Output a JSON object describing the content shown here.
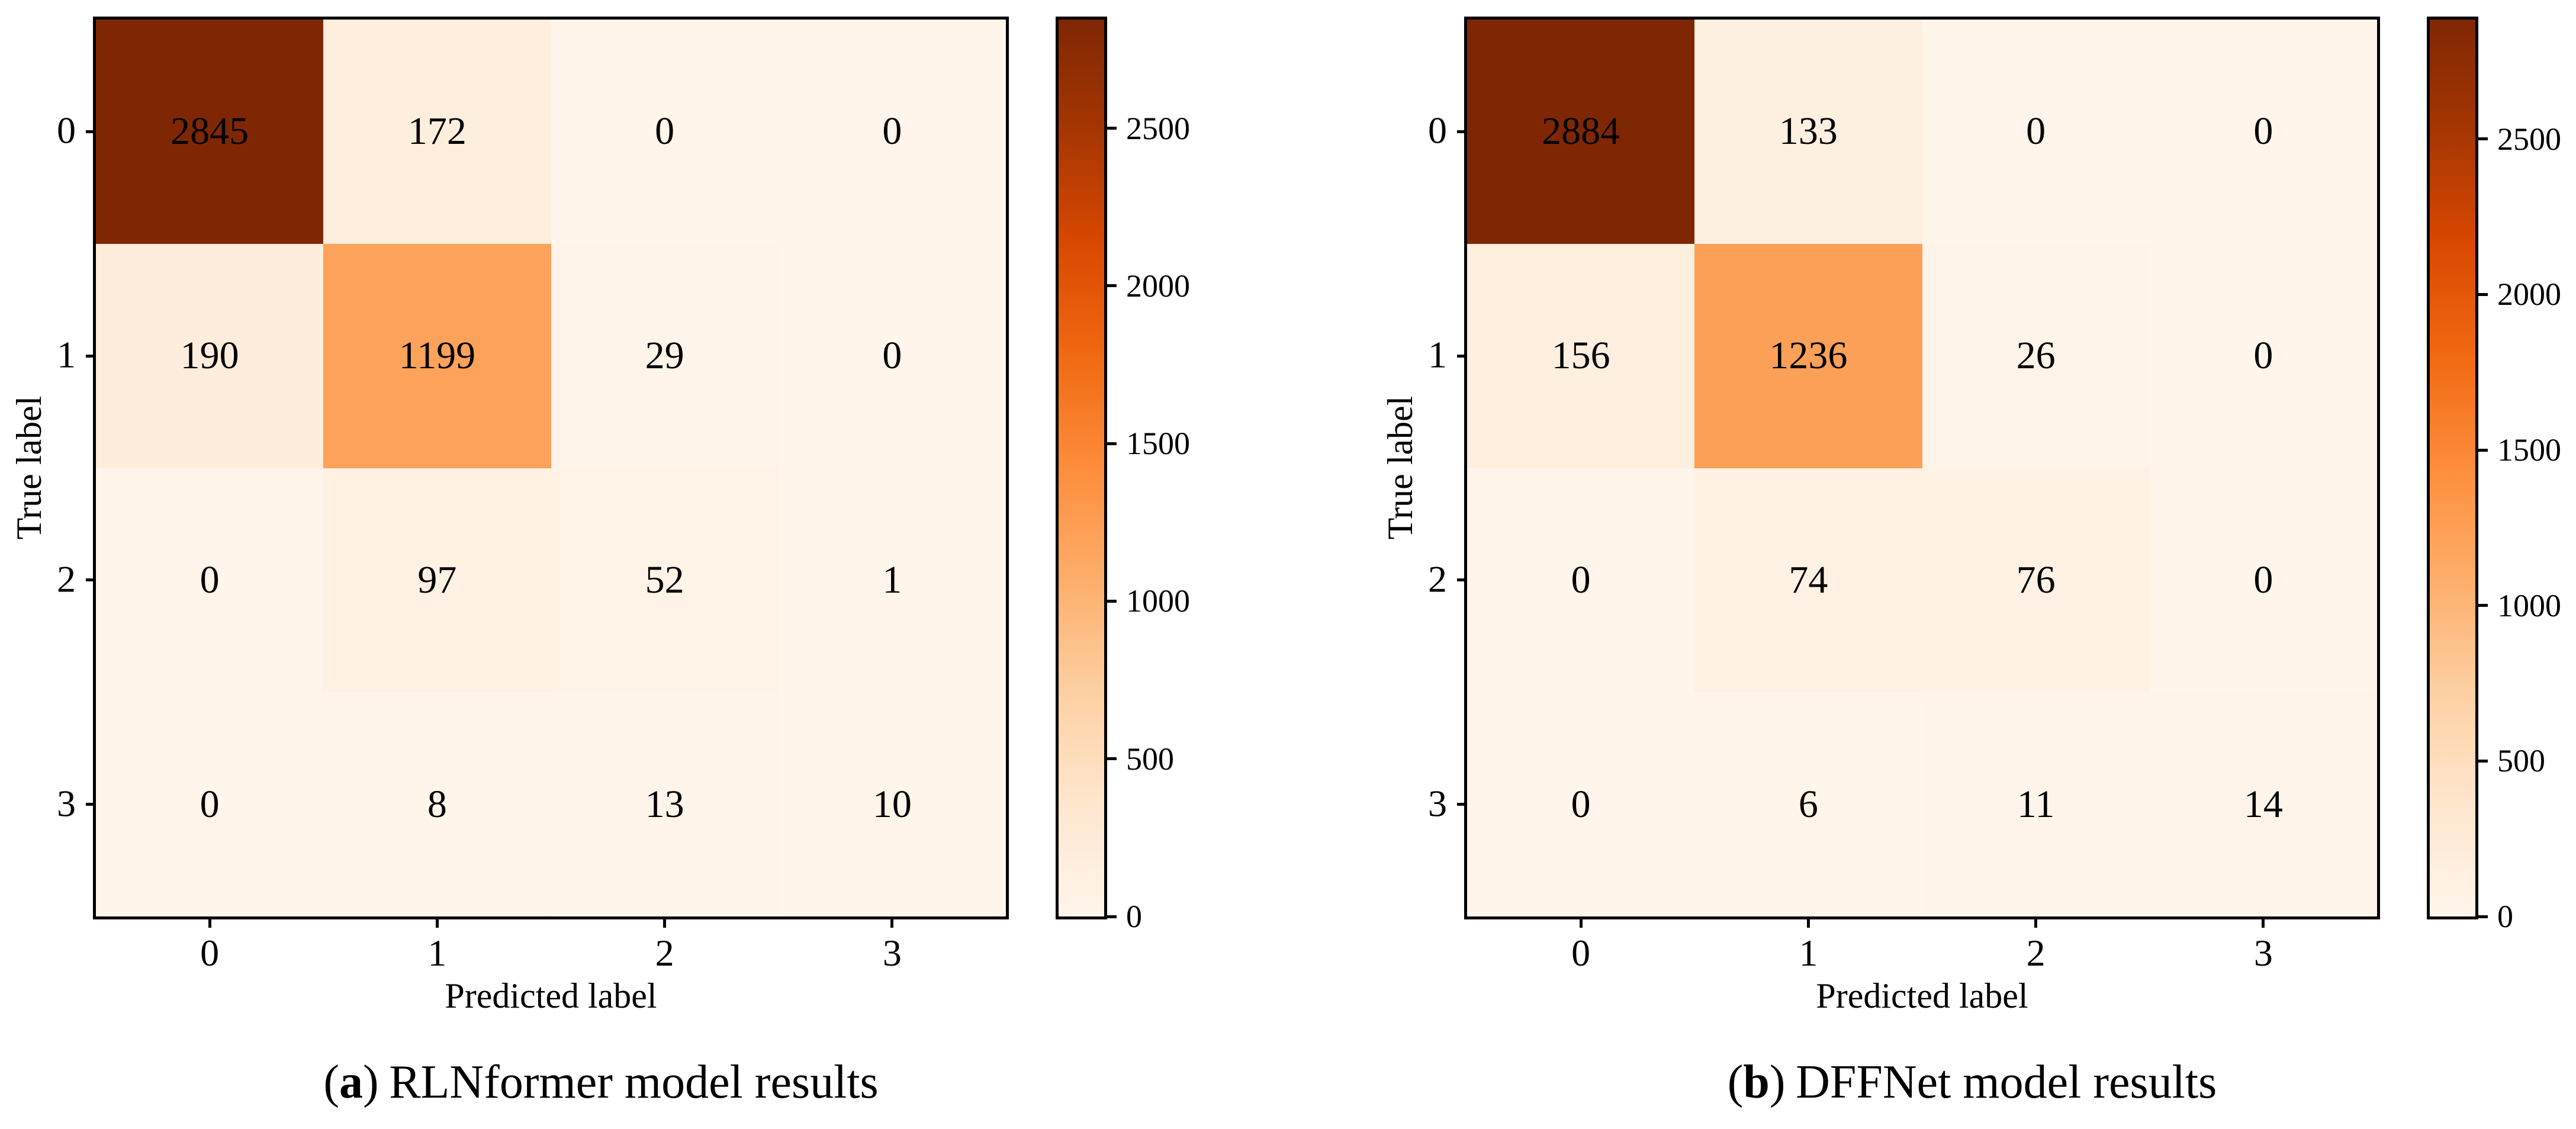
{
  "chart_data": [
    {
      "type": "heatmap",
      "title": "(a) RLNformer model results",
      "caption": {
        "open": "(",
        "letter": "a",
        "close": ")",
        "text": "RLNformer model results"
      },
      "xlabel": "Predicted label",
      "ylabel": "True label",
      "x_tick_labels": [
        "0",
        "1",
        "2",
        "3"
      ],
      "y_tick_labels": [
        "0",
        "1",
        "2",
        "3"
      ],
      "matrix": [
        [
          2845,
          172,
          0,
          0
        ],
        [
          190,
          1199,
          29,
          0
        ],
        [
          0,
          97,
          52,
          1
        ],
        [
          0,
          8,
          13,
          10
        ]
      ],
      "cell_colors": [
        [
          "#7f2704",
          "#feeedd",
          "#fff5eb",
          "#fff5eb"
        ],
        [
          "#feeddc",
          "#fda25a",
          "#fff4e9",
          "#fff5eb"
        ],
        [
          "#fff5eb",
          "#fff1e3",
          "#fff3e7",
          "#fff5eb"
        ],
        [
          "#fff5eb",
          "#fff5ea",
          "#fff4ea",
          "#fff5ea"
        ]
      ],
      "colorbar": {
        "vmin": 0,
        "vmax": 2845,
        "tick_values": [
          0,
          500,
          1000,
          1500,
          2000,
          2500
        ],
        "tick_labels": [
          "0",
          "500",
          "1000",
          "1500",
          "2000",
          "2500"
        ]
      }
    },
    {
      "type": "heatmap",
      "title": "(b) DFFNet model results",
      "caption": {
        "open": "(",
        "letter": "b",
        "close": ")",
        "text": "DFFNet model results"
      },
      "xlabel": "Predicted label",
      "ylabel": "True label",
      "x_tick_labels": [
        "0",
        "1",
        "2",
        "3"
      ],
      "y_tick_labels": [
        "0",
        "1",
        "2",
        "3"
      ],
      "matrix": [
        [
          2884,
          133,
          0,
          0
        ],
        [
          156,
          1236,
          26,
          0
        ],
        [
          0,
          74,
          76,
          0
        ],
        [
          0,
          6,
          11,
          14
        ]
      ],
      "cell_colors": [
        [
          "#7f2704",
          "#fef0e1",
          "#fff5eb",
          "#fff5eb"
        ],
        [
          "#feefdf",
          "#fda057",
          "#fff4e9",
          "#fff5eb"
        ],
        [
          "#fff5eb",
          "#fff2e5",
          "#fff2e5",
          "#fff5eb"
        ],
        [
          "#fff5eb",
          "#fff5ea",
          "#fff4ea",
          "#fff4ea"
        ]
      ],
      "colorbar": {
        "vmin": 0,
        "vmax": 2884,
        "tick_values": [
          0,
          500,
          1000,
          1500,
          2000,
          2500
        ],
        "tick_labels": [
          "0",
          "500",
          "1000",
          "1500",
          "2000",
          "2500"
        ]
      }
    }
  ],
  "colors": {
    "colormap": "Oranges",
    "colormap_stops": [
      "#fff5eb",
      "#fee6ce",
      "#fdd0a2",
      "#fdae6b",
      "#fd8d3c",
      "#f16913",
      "#d94801",
      "#a63603",
      "#7f2704"
    ],
    "cell_text": "#000000",
    "axis": "#000000",
    "background": "#ffffff"
  }
}
